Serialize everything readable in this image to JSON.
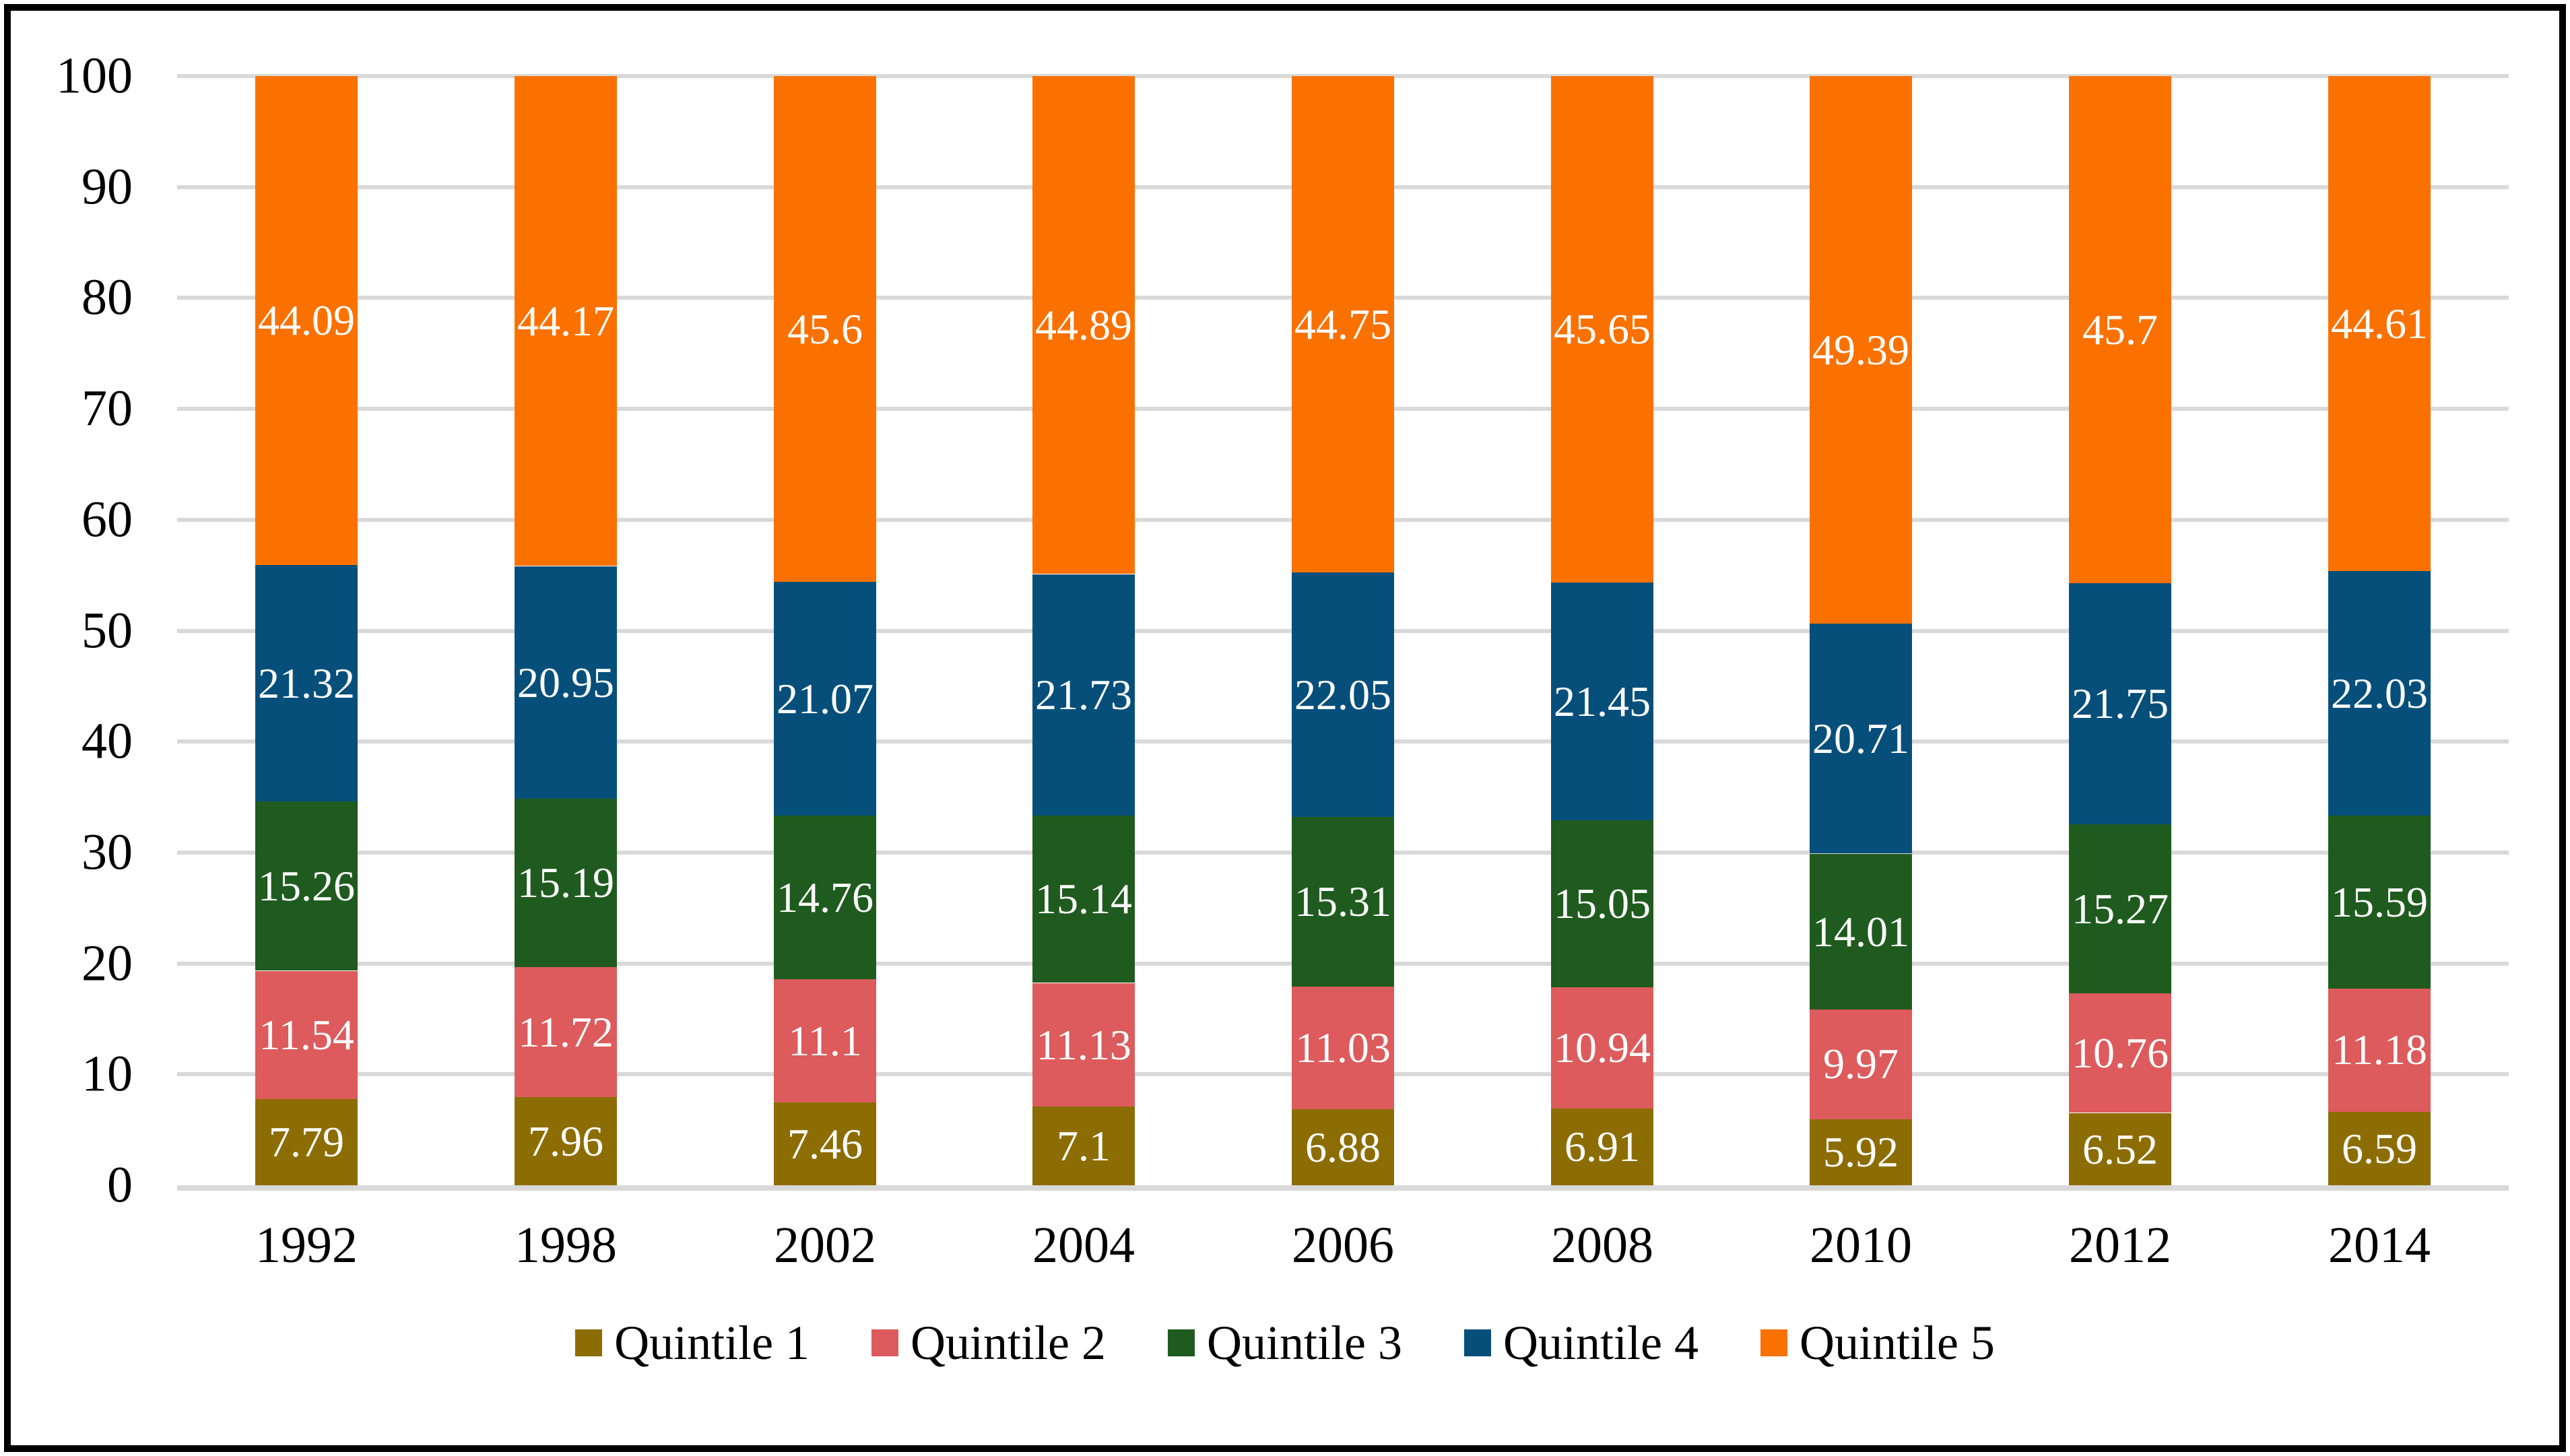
{
  "chart_data": {
    "type": "bar",
    "stacked": true,
    "orientation": "vertical",
    "categories": [
      "1992",
      "1998",
      "2002",
      "2004",
      "2006",
      "2008",
      "2010",
      "2012",
      "2014"
    ],
    "series": [
      {
        "name": "Quintile 1",
        "color": "#8C6D03",
        "values": [
          7.79,
          7.96,
          7.46,
          7.1,
          6.88,
          6.91,
          5.92,
          6.52,
          6.59
        ]
      },
      {
        "name": "Quintile 2",
        "color": "#DD5B5C",
        "values": [
          11.54,
          11.72,
          11.1,
          11.13,
          11.03,
          10.94,
          9.97,
          10.76,
          11.18
        ]
      },
      {
        "name": "Quintile 3",
        "color": "#1F5B1E",
        "values": [
          15.26,
          15.19,
          14.76,
          15.14,
          15.31,
          15.05,
          14.01,
          15.27,
          15.59
        ]
      },
      {
        "name": "Quintile 4",
        "color": "#074F7B",
        "values": [
          21.32,
          20.95,
          21.07,
          21.73,
          22.05,
          21.45,
          20.71,
          21.75,
          22.03
        ]
      },
      {
        "name": "Quintile 5",
        "color": "#FB7100",
        "values": [
          44.09,
          44.17,
          45.6,
          44.89,
          44.75,
          45.65,
          49.39,
          45.7,
          44.61
        ]
      }
    ],
    "title": "",
    "xlabel": "",
    "ylabel": "",
    "ylim": [
      0,
      100
    ],
    "ytick_step": 10,
    "grid": true,
    "legend_position": "bottom",
    "data_label_position": "center"
  },
  "style": {
    "grid_color": "#D9D9D9",
    "axis_color": "#D9D9D9",
    "data_label_color": "#FFFFFF",
    "tick_label_color": "#000000",
    "background": "#FFFFFF",
    "border_color": "#000000"
  }
}
